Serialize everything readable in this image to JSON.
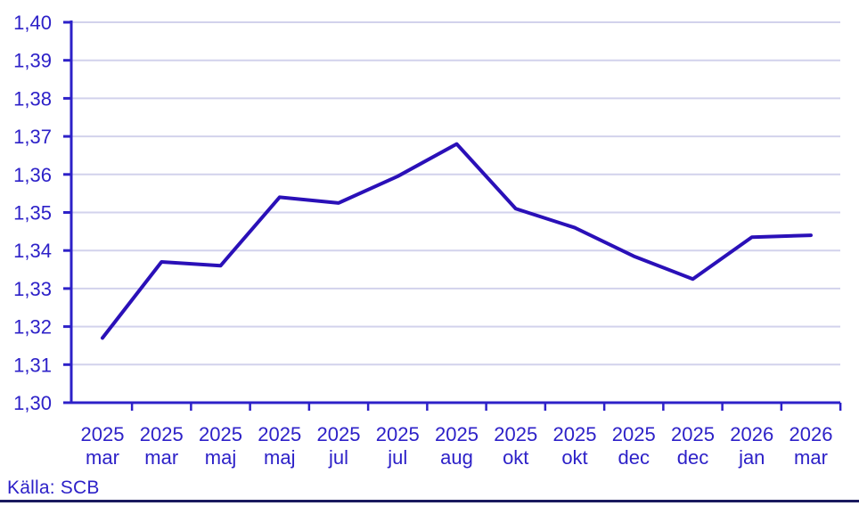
{
  "chart_data": {
    "type": "line",
    "title": "",
    "xlabel": "",
    "ylabel": "",
    "categories": [
      {
        "year": "2025",
        "month": "mar"
      },
      {
        "year": "2025",
        "month": "mar"
      },
      {
        "year": "2025",
        "month": "maj"
      },
      {
        "year": "2025",
        "month": "maj"
      },
      {
        "year": "2025",
        "month": "jul"
      },
      {
        "year": "2025",
        "month": "jul"
      },
      {
        "year": "2025",
        "month": "aug"
      },
      {
        "year": "2025",
        "month": "okt"
      },
      {
        "year": "2025",
        "month": "okt"
      },
      {
        "year": "2025",
        "month": "dec"
      },
      {
        "year": "2025",
        "month": "dec"
      },
      {
        "year": "2026",
        "month": "jan"
      },
      {
        "year": "2026",
        "month": "mar"
      }
    ],
    "values": [
      1.317,
      1.337,
      1.336,
      1.354,
      1.3525,
      1.3595,
      1.368,
      1.351,
      1.346,
      1.3385,
      1.3325,
      1.3435,
      1.344
    ],
    "ylim": [
      1.3,
      1.4
    ],
    "ytick_step": 0.01,
    "ytick_labels": [
      "1,40",
      "1,39",
      "1,38",
      "1,37",
      "1,36",
      "1,35",
      "1,34",
      "1,33",
      "1,32",
      "1,31",
      "1,30"
    ],
    "decimal_separator": ",",
    "grid": "horizontal",
    "legend": "none"
  },
  "source": {
    "label": "Källa: SCB"
  },
  "colors": {
    "line": "#2A10B8",
    "axis": "#2D21C8",
    "text": "#2D21C8",
    "grid": "#D2D2EC",
    "bottom_rule": "#1A1A5E",
    "background": "#FFFFFF"
  }
}
